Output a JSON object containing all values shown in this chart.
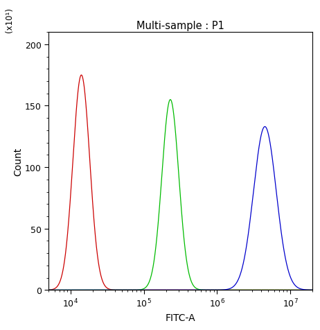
{
  "title": "Multi-sample : P1",
  "xlabel": "FITC-A",
  "ylabel": "Count",
  "y_scale_label": "(x10¹)",
  "ylim": [
    0,
    210
  ],
  "yticks": [
    0,
    50,
    100,
    150,
    200
  ],
  "xlim": [
    5000,
    20000000
  ],
  "background_color": "#ffffff",
  "curves": [
    {
      "color": "#cc0000",
      "peak_x": 14000,
      "peak_y": 175,
      "sigma": 0.115,
      "base": 0
    },
    {
      "color": "#00bb00",
      "peak_x": 230000,
      "peak_y": 155,
      "sigma": 0.115,
      "base": 0
    },
    {
      "color": "#0000cc",
      "peak_x": 4500000,
      "peak_y": 133,
      "sigma": 0.155,
      "base": 0
    }
  ],
  "title_fontsize": 10.5,
  "label_fontsize": 10,
  "tick_fontsize": 9,
  "figsize": [
    4.62,
    4.77
  ],
  "dpi": 100
}
